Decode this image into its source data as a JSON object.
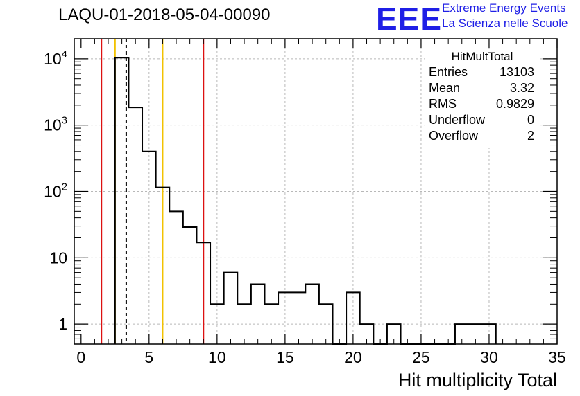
{
  "title": "LAQU-01-2018-05-04-00090",
  "logo": {
    "mark": "EEE",
    "line1": "Extreme Energy Events",
    "line2": "La Scienza nelle Scuole"
  },
  "stats": {
    "name": "HitMultTotal",
    "rows": [
      {
        "label": "Entries",
        "value": "13103"
      },
      {
        "label": "Mean",
        "value": "3.32"
      },
      {
        "label": "RMS",
        "value": "0.9829"
      },
      {
        "label": "Underflow",
        "value": "0"
      },
      {
        "label": "Overflow",
        "value": "2"
      }
    ]
  },
  "colors": {
    "red": "#dd1111",
    "yellow": "#f2c200",
    "grid": "#b8b8b8",
    "logo": "#1f1fe6"
  },
  "chart_data": {
    "type": "histogram",
    "title": "LAQU-01-2018-05-04-00090",
    "xlabel": "Hit multiplicity Total",
    "ylabel": "",
    "xlim": [
      -0.5,
      35
    ],
    "ylim": [
      0.5,
      20000
    ],
    "yscale": "log",
    "grid": true,
    "x_ticks": [
      0,
      5,
      10,
      15,
      20,
      25,
      30,
      35
    ],
    "y_ticks": [
      {
        "value": 1,
        "label": "1"
      },
      {
        "value": 10,
        "label": "10"
      },
      {
        "value": 100,
        "label": "10^2"
      },
      {
        "value": 1000,
        "label": "10^3"
      },
      {
        "value": 10000,
        "label": "10^4"
      }
    ],
    "bin_edges": [
      2.5,
      3.5,
      4.5,
      5.5,
      6.5,
      7.5,
      8.5,
      9.5,
      10.5,
      11.5,
      12.5,
      13.5,
      14.5,
      15.5,
      16.5,
      17.5,
      18.5,
      19.5,
      20.5,
      21.5,
      22.5,
      23.5,
      24.5,
      25.5,
      26.5,
      27.5,
      28.5,
      29.5,
      30.5
    ],
    "counts": [
      10400,
      1850,
      400,
      115,
      50,
      29,
      17,
      2,
      6,
      2,
      4,
      2,
      3,
      3,
      4,
      2,
      0,
      3,
      1,
      0,
      1,
      0,
      0,
      0,
      0,
      1,
      1,
      1
    ],
    "vertical_lines": [
      {
        "x": 1.5,
        "color": "red",
        "style": "solid"
      },
      {
        "x": 2.5,
        "color": "yellow",
        "style": "solid"
      },
      {
        "x": 3.32,
        "color": "black",
        "style": "dashed"
      },
      {
        "x": 6.0,
        "color": "yellow",
        "style": "solid"
      },
      {
        "x": 9.0,
        "color": "red",
        "style": "solid"
      }
    ]
  }
}
